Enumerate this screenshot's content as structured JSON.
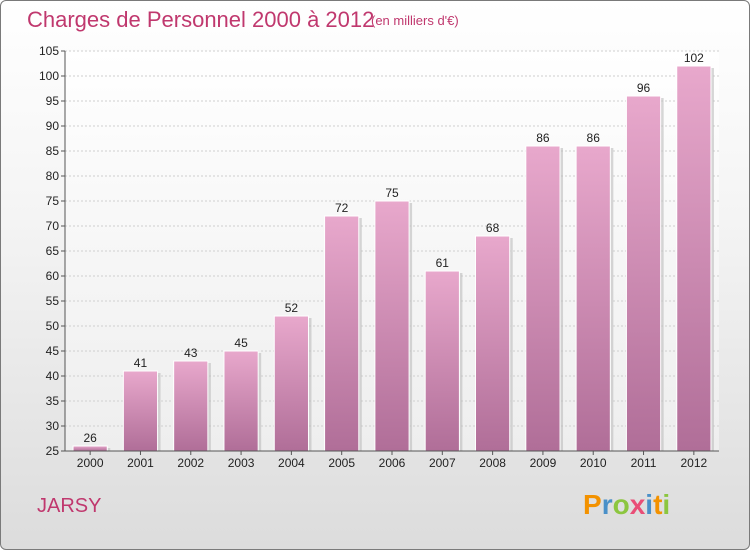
{
  "header": {
    "title": "Charges de Personnel 2000 à 2012",
    "subtitle": "(en milliers d'€)"
  },
  "footer": {
    "city": "JARSY",
    "logo_letters": [
      "P",
      "r",
      "o",
      "x",
      "i",
      "t",
      "i"
    ],
    "logo_colors": [
      "#f39200",
      "#4a90c8",
      "#8cc63f",
      "#e94e77",
      "#4a90c8",
      "#f39200",
      "#8cc63f"
    ]
  },
  "chart_data": {
    "type": "bar",
    "categories": [
      "2000",
      "2001",
      "2002",
      "2003",
      "2004",
      "2005",
      "2006",
      "2007",
      "2008",
      "2009",
      "2010",
      "2011",
      "2012"
    ],
    "values": [
      26,
      41,
      43,
      45,
      52,
      72,
      75,
      61,
      68,
      86,
      86,
      96,
      102
    ],
    "ylim": [
      25,
      105
    ],
    "yticks": [
      25,
      30,
      35,
      40,
      45,
      50,
      55,
      60,
      65,
      70,
      75,
      80,
      85,
      90,
      95,
      100,
      105
    ],
    "grid": true,
    "bar_color": "#d98fb8",
    "bar_color_dark": "#b06e98"
  }
}
